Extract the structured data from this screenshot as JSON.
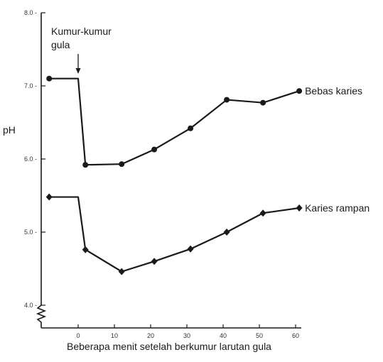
{
  "chart_data": {
    "type": "line",
    "title": "",
    "xlabel": "Beberapa menit setelah berkumur larutan gula",
    "ylabel": "pH",
    "xlim": [
      -10,
      62
    ],
    "ylim": [
      4.0,
      8.0
    ],
    "xticks": [
      0,
      10,
      20,
      30,
      40,
      50,
      60
    ],
    "yticks": [
      "4.0",
      "5.0",
      "6.0",
      "7.0",
      "8.0"
    ],
    "grid": false,
    "annotation": {
      "text_line1": "Kumur-kumur",
      "text_line2": "gula",
      "x": 0
    },
    "series": [
      {
        "name": "Bebas karies",
        "marker": "circle",
        "points": [
          {
            "x": -8,
            "y": 7.1,
            "marker": true
          },
          {
            "x": 0,
            "y": 7.1,
            "marker": false
          },
          {
            "x": 2,
            "y": 5.92,
            "marker": true
          },
          {
            "x": 12,
            "y": 5.93,
            "marker": true
          },
          {
            "x": 21,
            "y": 6.13,
            "marker": true
          },
          {
            "x": 31,
            "y": 6.42,
            "marker": true
          },
          {
            "x": 41,
            "y": 6.81,
            "marker": true
          },
          {
            "x": 51,
            "y": 6.77,
            "marker": true
          },
          {
            "x": 61,
            "y": 6.93,
            "marker": true
          }
        ]
      },
      {
        "name": "Karies rampan",
        "marker": "diamond",
        "points": [
          {
            "x": -8,
            "y": 5.48,
            "marker": true
          },
          {
            "x": 0,
            "y": 5.48,
            "marker": false
          },
          {
            "x": 2,
            "y": 4.76,
            "marker": true
          },
          {
            "x": 12,
            "y": 4.46,
            "marker": true
          },
          {
            "x": 21,
            "y": 4.6,
            "marker": true
          },
          {
            "x": 31,
            "y": 4.77,
            "marker": true
          },
          {
            "x": 41,
            "y": 5.0,
            "marker": true
          },
          {
            "x": 51,
            "y": 5.26,
            "marker": true
          },
          {
            "x": 61,
            "y": 5.33,
            "marker": true
          }
        ]
      }
    ]
  }
}
